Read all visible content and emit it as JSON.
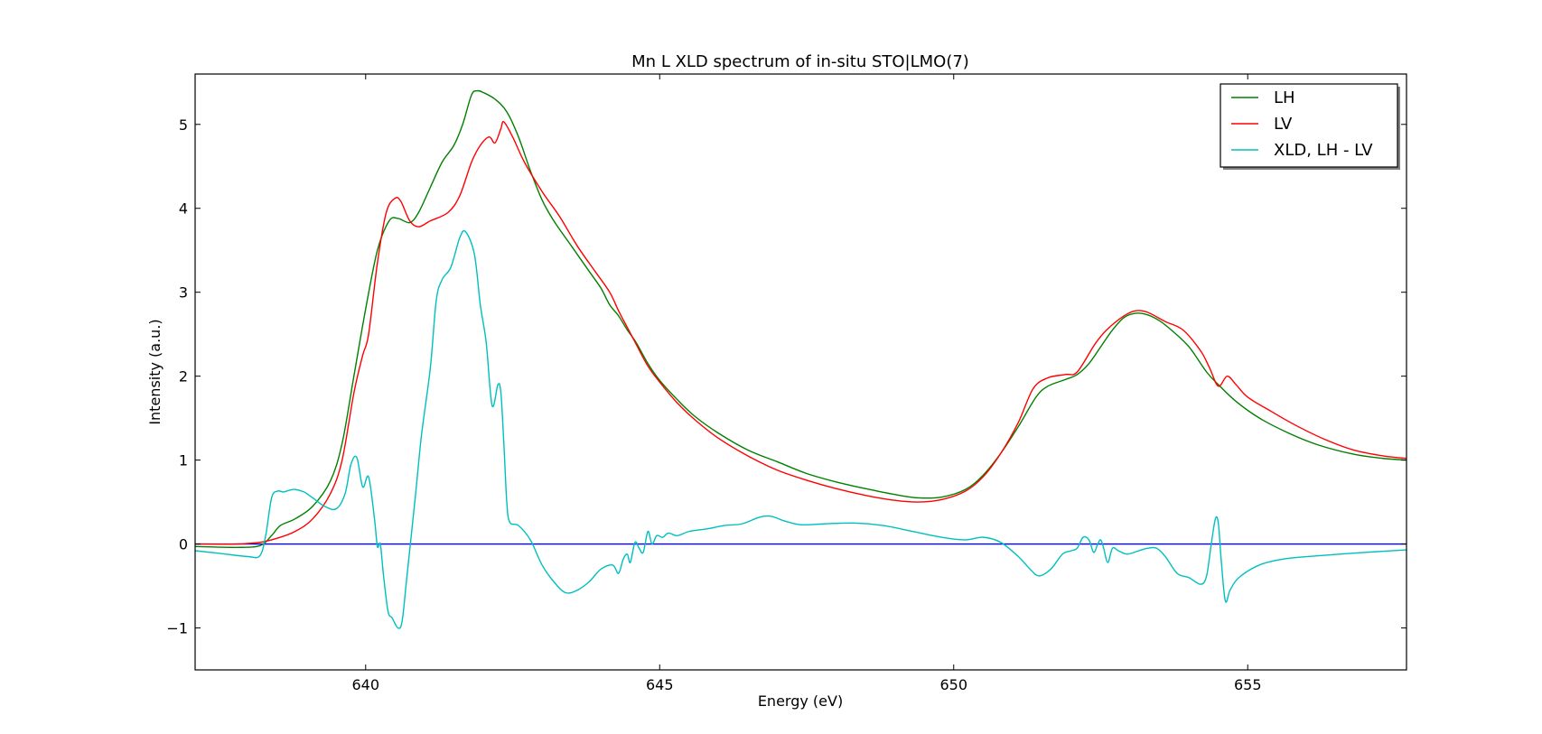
{
  "chart_data": {
    "type": "line",
    "title": "Mn L XLD spectrum of in-situ STO|LMO(7)",
    "xlabel": "Energy (eV)",
    "ylabel": "Intensity (a.u.)",
    "xlim": [
      637.1,
      657.7
    ],
    "ylim": [
      -1.5,
      5.6
    ],
    "xticks": [
      640,
      645,
      650,
      655
    ],
    "xtick_labels": [
      "640",
      "645",
      "650",
      "655"
    ],
    "yticks": [
      -1,
      0,
      1,
      2,
      3,
      4,
      5
    ],
    "ytick_labels": [
      "−1",
      "0",
      "1",
      "2",
      "3",
      "4",
      "5"
    ],
    "grid": false,
    "legend_position": "top-right",
    "baseline": {
      "y": 0,
      "color": "#0000ff"
    },
    "series": [
      {
        "name": "LH",
        "color": "#008000",
        "points": [
          [
            637.1,
            -0.03
          ],
          [
            637.8,
            -0.04
          ],
          [
            638.2,
            -0.02
          ],
          [
            638.4,
            0.1
          ],
          [
            638.55,
            0.22
          ],
          [
            638.8,
            0.3
          ],
          [
            639.1,
            0.45
          ],
          [
            639.4,
            0.75
          ],
          [
            639.6,
            1.2
          ],
          [
            639.8,
            2.0
          ],
          [
            640.0,
            2.8
          ],
          [
            640.2,
            3.5
          ],
          [
            640.4,
            3.85
          ],
          [
            640.55,
            3.88
          ],
          [
            640.75,
            3.83
          ],
          [
            640.9,
            3.95
          ],
          [
            641.1,
            4.25
          ],
          [
            641.3,
            4.55
          ],
          [
            641.5,
            4.75
          ],
          [
            641.65,
            5.0
          ],
          [
            641.8,
            5.35
          ],
          [
            641.9,
            5.4
          ],
          [
            642.0,
            5.38
          ],
          [
            642.2,
            5.3
          ],
          [
            642.4,
            5.15
          ],
          [
            642.6,
            4.85
          ],
          [
            642.8,
            4.45
          ],
          [
            643.0,
            4.1
          ],
          [
            643.2,
            3.85
          ],
          [
            643.5,
            3.55
          ],
          [
            643.8,
            3.25
          ],
          [
            644.0,
            3.05
          ],
          [
            644.15,
            2.85
          ],
          [
            644.3,
            2.72
          ],
          [
            644.45,
            2.55
          ],
          [
            644.6,
            2.4
          ],
          [
            644.8,
            2.15
          ],
          [
            645.0,
            1.95
          ],
          [
            645.3,
            1.72
          ],
          [
            645.6,
            1.52
          ],
          [
            646.0,
            1.32
          ],
          [
            646.5,
            1.12
          ],
          [
            647.0,
            0.98
          ],
          [
            647.5,
            0.84
          ],
          [
            648.0,
            0.74
          ],
          [
            648.5,
            0.66
          ],
          [
            649.0,
            0.59
          ],
          [
            649.4,
            0.55
          ],
          [
            649.8,
            0.56
          ],
          [
            650.2,
            0.65
          ],
          [
            650.5,
            0.82
          ],
          [
            650.8,
            1.08
          ],
          [
            651.1,
            1.4
          ],
          [
            651.4,
            1.75
          ],
          [
            651.6,
            1.88
          ],
          [
            651.9,
            1.96
          ],
          [
            652.1,
            2.02
          ],
          [
            652.3,
            2.15
          ],
          [
            652.5,
            2.35
          ],
          [
            652.7,
            2.55
          ],
          [
            652.9,
            2.7
          ],
          [
            653.1,
            2.75
          ],
          [
            653.3,
            2.73
          ],
          [
            653.5,
            2.66
          ],
          [
            653.7,
            2.55
          ],
          [
            654.0,
            2.35
          ],
          [
            654.3,
            2.05
          ],
          [
            654.5,
            1.9
          ],
          [
            654.8,
            1.7
          ],
          [
            655.2,
            1.5
          ],
          [
            655.7,
            1.32
          ],
          [
            656.2,
            1.18
          ],
          [
            656.8,
            1.07
          ],
          [
            657.3,
            1.02
          ],
          [
            657.7,
            1.0
          ]
        ]
      },
      {
        "name": "LV",
        "color": "#ff0000",
        "points": [
          [
            637.1,
            0.0
          ],
          [
            637.8,
            0.0
          ],
          [
            638.2,
            0.02
          ],
          [
            638.5,
            0.07
          ],
          [
            638.8,
            0.15
          ],
          [
            639.1,
            0.3
          ],
          [
            639.4,
            0.6
          ],
          [
            639.6,
            1.0
          ],
          [
            639.8,
            1.8
          ],
          [
            639.95,
            2.25
          ],
          [
            640.05,
            2.5
          ],
          [
            640.2,
            3.35
          ],
          [
            640.35,
            3.95
          ],
          [
            640.5,
            4.12
          ],
          [
            640.6,
            4.08
          ],
          [
            640.75,
            3.85
          ],
          [
            640.9,
            3.78
          ],
          [
            641.1,
            3.85
          ],
          [
            641.4,
            3.95
          ],
          [
            641.6,
            4.15
          ],
          [
            641.8,
            4.55
          ],
          [
            641.95,
            4.75
          ],
          [
            642.1,
            4.85
          ],
          [
            642.2,
            4.78
          ],
          [
            642.3,
            4.95
          ],
          [
            642.35,
            5.03
          ],
          [
            642.5,
            4.85
          ],
          [
            642.7,
            4.55
          ],
          [
            643.0,
            4.2
          ],
          [
            643.3,
            3.9
          ],
          [
            643.6,
            3.55
          ],
          [
            643.9,
            3.25
          ],
          [
            644.15,
            3.0
          ],
          [
            644.3,
            2.78
          ],
          [
            644.45,
            2.58
          ],
          [
            644.6,
            2.38
          ],
          [
            644.8,
            2.12
          ],
          [
            645.0,
            1.93
          ],
          [
            645.3,
            1.68
          ],
          [
            645.6,
            1.48
          ],
          [
            646.0,
            1.26
          ],
          [
            646.5,
            1.05
          ],
          [
            647.0,
            0.88
          ],
          [
            647.5,
            0.76
          ],
          [
            648.0,
            0.66
          ],
          [
            648.5,
            0.58
          ],
          [
            649.0,
            0.52
          ],
          [
            649.4,
            0.5
          ],
          [
            649.8,
            0.53
          ],
          [
            650.2,
            0.63
          ],
          [
            650.5,
            0.8
          ],
          [
            650.8,
            1.08
          ],
          [
            651.1,
            1.45
          ],
          [
            651.35,
            1.85
          ],
          [
            651.6,
            1.98
          ],
          [
            651.9,
            2.02
          ],
          [
            652.1,
            2.05
          ],
          [
            652.4,
            2.38
          ],
          [
            652.6,
            2.55
          ],
          [
            652.9,
            2.72
          ],
          [
            653.1,
            2.78
          ],
          [
            653.3,
            2.76
          ],
          [
            653.6,
            2.65
          ],
          [
            653.9,
            2.55
          ],
          [
            654.2,
            2.3
          ],
          [
            654.35,
            2.1
          ],
          [
            654.5,
            1.88
          ],
          [
            654.65,
            2.0
          ],
          [
            654.8,
            1.9
          ],
          [
            655.0,
            1.75
          ],
          [
            655.4,
            1.58
          ],
          [
            655.8,
            1.42
          ],
          [
            656.3,
            1.25
          ],
          [
            656.8,
            1.12
          ],
          [
            657.3,
            1.05
          ],
          [
            657.7,
            1.02
          ]
        ]
      },
      {
        "name": "XLD, LH - LV",
        "color": "#00bfbf",
        "points": [
          [
            637.1,
            -0.08
          ],
          [
            637.5,
            -0.11
          ],
          [
            638.0,
            -0.15
          ],
          [
            638.2,
            -0.14
          ],
          [
            638.3,
            0.1
          ],
          [
            638.4,
            0.55
          ],
          [
            638.5,
            0.63
          ],
          [
            638.6,
            0.62
          ],
          [
            638.7,
            0.64
          ],
          [
            638.8,
            0.65
          ],
          [
            638.95,
            0.62
          ],
          [
            639.1,
            0.55
          ],
          [
            639.3,
            0.45
          ],
          [
            639.5,
            0.42
          ],
          [
            639.65,
            0.6
          ],
          [
            639.75,
            0.95
          ],
          [
            639.85,
            1.03
          ],
          [
            639.95,
            0.68
          ],
          [
            640.05,
            0.8
          ],
          [
            640.15,
            0.3
          ],
          [
            640.2,
            -0.03
          ],
          [
            640.25,
            0.0
          ],
          [
            640.3,
            -0.35
          ],
          [
            640.38,
            -0.8
          ],
          [
            640.45,
            -0.88
          ],
          [
            640.55,
            -1.0
          ],
          [
            640.62,
            -0.92
          ],
          [
            640.7,
            -0.4
          ],
          [
            640.85,
            0.6
          ],
          [
            640.95,
            1.3
          ],
          [
            641.1,
            2.1
          ],
          [
            641.2,
            2.9
          ],
          [
            641.3,
            3.15
          ],
          [
            641.45,
            3.3
          ],
          [
            641.6,
            3.65
          ],
          [
            641.7,
            3.72
          ],
          [
            641.85,
            3.45
          ],
          [
            641.95,
            2.85
          ],
          [
            642.05,
            2.4
          ],
          [
            642.15,
            1.65
          ],
          [
            642.25,
            1.9
          ],
          [
            642.3,
            1.8
          ],
          [
            642.35,
            1.2
          ],
          [
            642.4,
            0.5
          ],
          [
            642.45,
            0.26
          ],
          [
            642.6,
            0.22
          ],
          [
            642.8,
            0.05
          ],
          [
            643.0,
            -0.25
          ],
          [
            643.2,
            -0.45
          ],
          [
            643.4,
            -0.58
          ],
          [
            643.6,
            -0.55
          ],
          [
            643.8,
            -0.45
          ],
          [
            644.0,
            -0.3
          ],
          [
            644.2,
            -0.25
          ],
          [
            644.3,
            -0.35
          ],
          [
            644.38,
            -0.18
          ],
          [
            644.45,
            -0.12
          ],
          [
            644.5,
            -0.22
          ],
          [
            644.58,
            0.02
          ],
          [
            644.65,
            -0.05
          ],
          [
            644.72,
            -0.1
          ],
          [
            644.8,
            0.15
          ],
          [
            644.87,
            0.0
          ],
          [
            644.95,
            0.1
          ],
          [
            645.05,
            0.08
          ],
          [
            645.15,
            0.13
          ],
          [
            645.3,
            0.1
          ],
          [
            645.5,
            0.15
          ],
          [
            645.8,
            0.18
          ],
          [
            646.1,
            0.22
          ],
          [
            646.4,
            0.24
          ],
          [
            646.7,
            0.32
          ],
          [
            646.9,
            0.33
          ],
          [
            647.1,
            0.28
          ],
          [
            647.4,
            0.23
          ],
          [
            647.8,
            0.24
          ],
          [
            648.3,
            0.25
          ],
          [
            648.8,
            0.22
          ],
          [
            649.3,
            0.15
          ],
          [
            649.8,
            0.08
          ],
          [
            650.2,
            0.05
          ],
          [
            650.5,
            0.08
          ],
          [
            650.8,
            0.02
          ],
          [
            651.1,
            -0.15
          ],
          [
            651.3,
            -0.3
          ],
          [
            651.45,
            -0.38
          ],
          [
            651.65,
            -0.3
          ],
          [
            651.85,
            -0.12
          ],
          [
            652.0,
            -0.08
          ],
          [
            652.1,
            -0.05
          ],
          [
            652.2,
            0.08
          ],
          [
            652.3,
            0.05
          ],
          [
            652.38,
            -0.1
          ],
          [
            652.45,
            0.0
          ],
          [
            652.5,
            0.05
          ],
          [
            652.55,
            -0.05
          ],
          [
            652.62,
            -0.22
          ],
          [
            652.7,
            -0.05
          ],
          [
            652.8,
            -0.08
          ],
          [
            652.95,
            -0.12
          ],
          [
            653.15,
            -0.08
          ],
          [
            653.3,
            -0.05
          ],
          [
            653.45,
            -0.05
          ],
          [
            653.6,
            -0.15
          ],
          [
            653.8,
            -0.35
          ],
          [
            654.0,
            -0.4
          ],
          [
            654.2,
            -0.48
          ],
          [
            654.3,
            -0.38
          ],
          [
            654.38,
            0.0
          ],
          [
            654.45,
            0.3
          ],
          [
            654.5,
            0.25
          ],
          [
            654.55,
            -0.2
          ],
          [
            654.62,
            -0.68
          ],
          [
            654.7,
            -0.55
          ],
          [
            654.85,
            -0.4
          ],
          [
            655.2,
            -0.25
          ],
          [
            655.6,
            -0.18
          ],
          [
            656.2,
            -0.14
          ],
          [
            657.0,
            -0.1
          ],
          [
            657.7,
            -0.07
          ]
        ]
      }
    ]
  }
}
